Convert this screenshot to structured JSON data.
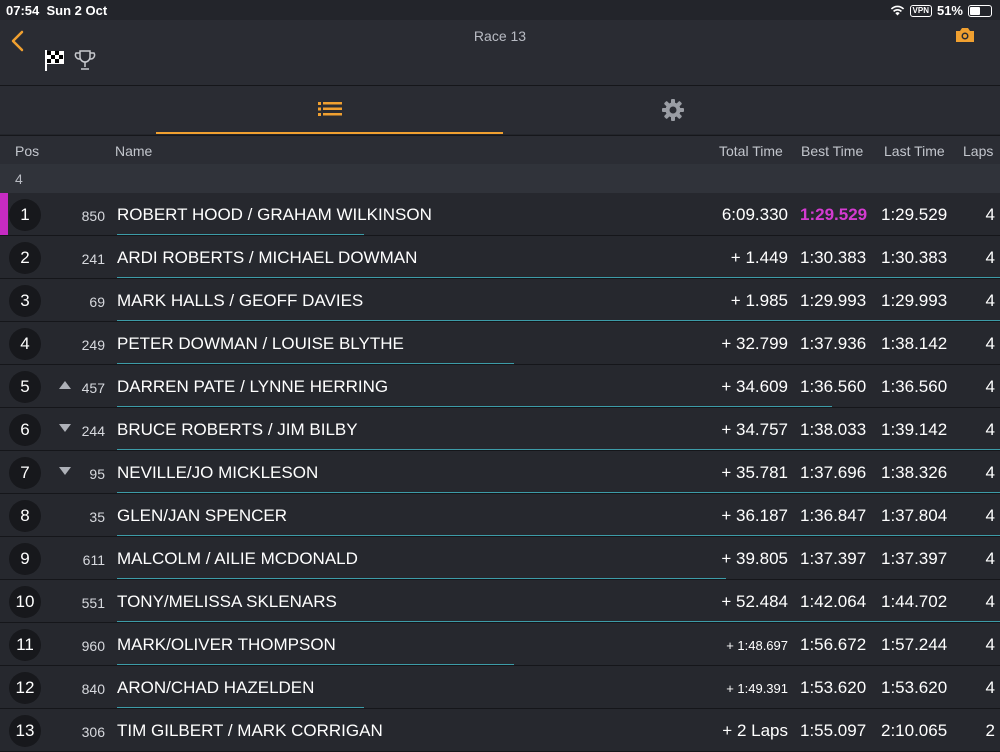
{
  "status_bar": {
    "time": "07:54",
    "date": "Sun 2 Oct",
    "vpn": "VPN",
    "battery": "51%"
  },
  "header": {
    "title": "Race 13",
    "back_icon": "chevron-left",
    "camera_icon": "camera",
    "flag_icon": "checkered-flag",
    "trophy_icon": "trophy"
  },
  "colors": {
    "accent": "#f0a030",
    "fastest": "#d43bd1",
    "progress": "#3d9ca8"
  },
  "tabs": [
    {
      "icon": "list-icon",
      "active": true
    },
    {
      "icon": "gear-icon",
      "active": false
    }
  ],
  "columns": {
    "pos": "Pos",
    "name": "Name",
    "total": "Total Time",
    "best": "Best Time",
    "last": "Last Time",
    "laps": "Laps"
  },
  "group_label": "4",
  "rows": [
    {
      "pos": "1",
      "number": "850",
      "name": "ROBERT HOOD / GRAHAM WILKINSON",
      "total": "6:09.330",
      "best": "1:29.529",
      "last": "1:29.529",
      "laps": "4",
      "change": "",
      "fastest": true,
      "leader": true,
      "progress": 0.28
    },
    {
      "pos": "2",
      "number": "241",
      "name": "ARDI ROBERTS / MICHAEL DOWMAN",
      "total": "+ 1.449",
      "best": "1:30.383",
      "last": "1:30.383",
      "laps": "4",
      "change": "",
      "progress": 1.0
    },
    {
      "pos": "3",
      "number": "69",
      "name": "MARK HALLS / GEOFF DAVIES",
      "total": "+ 1.985",
      "best": "1:29.993",
      "last": "1:29.993",
      "laps": "4",
      "change": "",
      "progress": 1.0
    },
    {
      "pos": "4",
      "number": "249",
      "name": "PETER DOWMAN / LOUISE BLYTHE",
      "total": "+ 32.799",
      "best": "1:37.936",
      "last": "1:38.142",
      "laps": "4",
      "change": "",
      "progress": 0.45
    },
    {
      "pos": "5",
      "number": "457",
      "name": "DARREN PATE / LYNNE HERRING",
      "total": "+ 34.609",
      "best": "1:36.560",
      "last": "1:36.560",
      "laps": "4",
      "change": "up",
      "progress": 0.81
    },
    {
      "pos": "6",
      "number": "244",
      "name": "BRUCE ROBERTS / JIM BILBY",
      "total": "+ 34.757",
      "best": "1:38.033",
      "last": "1:39.142",
      "laps": "4",
      "change": "down",
      "progress": 1.0
    },
    {
      "pos": "7",
      "number": "95",
      "name": "NEVILLE/JO MICKLESON",
      "total": "+ 35.781",
      "best": "1:37.696",
      "last": "1:38.326",
      "laps": "4",
      "change": "down",
      "progress": 1.0
    },
    {
      "pos": "8",
      "number": "35",
      "name": "GLEN/JAN SPENCER",
      "total": "+ 36.187",
      "best": "1:36.847",
      "last": "1:37.804",
      "laps": "4",
      "change": "",
      "progress": 1.0
    },
    {
      "pos": "9",
      "number": "611",
      "name": "MALCOLM / AILIE MCDONALD",
      "total": "+ 39.805",
      "best": "1:37.397",
      "last": "1:37.397",
      "laps": "4",
      "change": "",
      "progress": 0.69
    },
    {
      "pos": "10",
      "number": "551",
      "name": "TONY/MELISSA SKLENARS",
      "total": "+ 52.484",
      "best": "1:42.064",
      "last": "1:44.702",
      "laps": "4",
      "change": "",
      "progress": 1.0
    },
    {
      "pos": "11",
      "number": "960",
      "name": "MARK/OLIVER THOMPSON",
      "total": "+ 1:48.697",
      "best": "1:56.672",
      "last": "1:57.244",
      "laps": "4",
      "change": "",
      "small_total": true,
      "progress": 0.45
    },
    {
      "pos": "12",
      "number": "840",
      "name": "ARON/CHAD HAZELDEN",
      "total": "+ 1:49.391",
      "best": "1:53.620",
      "last": "1:53.620",
      "laps": "4",
      "change": "",
      "small_total": true,
      "progress": 0.28
    },
    {
      "pos": "13",
      "number": "306",
      "name": "TIM GILBERT / MARK CORRIGAN",
      "total": "+ 2 Laps",
      "best": "1:55.097",
      "last": "2:10.065",
      "laps": "2",
      "change": "",
      "progress": 0.0
    }
  ]
}
